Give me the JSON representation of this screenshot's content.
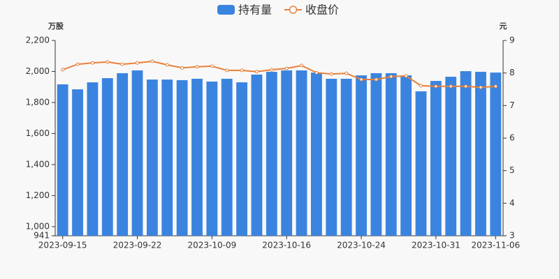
{
  "chart_data": {
    "type": "bar_line",
    "y_label": "万股",
    "y2_label": "元",
    "categories": [
      "2023-09-15",
      null,
      null,
      null,
      null,
      "2023-09-22",
      null,
      null,
      null,
      null,
      "2023-10-09",
      null,
      null,
      null,
      null,
      "2023-10-16",
      null,
      null,
      null,
      null,
      "2023-10-24",
      null,
      null,
      null,
      null,
      "2023-10-31",
      null,
      null,
      null,
      "2023-11-06"
    ],
    "series": [
      {
        "name": "持有量",
        "color": "#3a84e0",
        "kind": "bar",
        "axis": "y",
        "values": [
          1917,
          1885,
          1930,
          1957,
          1989,
          2007,
          1948,
          1948,
          1944,
          1953,
          1935,
          1953,
          1930,
          1980,
          1998,
          2007,
          2007,
          1993,
          1953,
          1953,
          1975,
          1989,
          1989,
          1975,
          1872,
          1939,
          1966,
          2002,
          1998,
          1993
        ]
      },
      {
        "name": "收盘价",
        "color": "#e8803a",
        "kind": "line",
        "axis": "y2",
        "values": [
          8.1,
          8.27,
          8.31,
          8.34,
          8.27,
          8.31,
          8.36,
          8.25,
          8.16,
          8.19,
          8.21,
          8.08,
          8.08,
          8.04,
          8.1,
          8.14,
          8.23,
          8.01,
          7.97,
          7.99,
          7.8,
          7.8,
          7.89,
          7.91,
          7.61,
          7.59,
          7.59,
          7.59,
          7.56,
          7.59
        ]
      }
    ],
    "ylim": [
      941,
      2200
    ],
    "yticks": [
      941,
      {
        "value": 1000,
        "label": "1,000"
      },
      {
        "value": 1200,
        "label": "1,200"
      },
      {
        "value": 1400,
        "label": "1,400"
      },
      {
        "value": 1600,
        "label": "1,600"
      },
      {
        "value": 1800,
        "label": "1,800"
      },
      {
        "value": 2000,
        "label": "2,000"
      },
      {
        "value": 2200,
        "label": "2,200"
      }
    ],
    "y2lim": [
      3,
      9
    ],
    "y2ticks": [
      3,
      4,
      5,
      6,
      7,
      8,
      9
    ],
    "legend": "top"
  }
}
